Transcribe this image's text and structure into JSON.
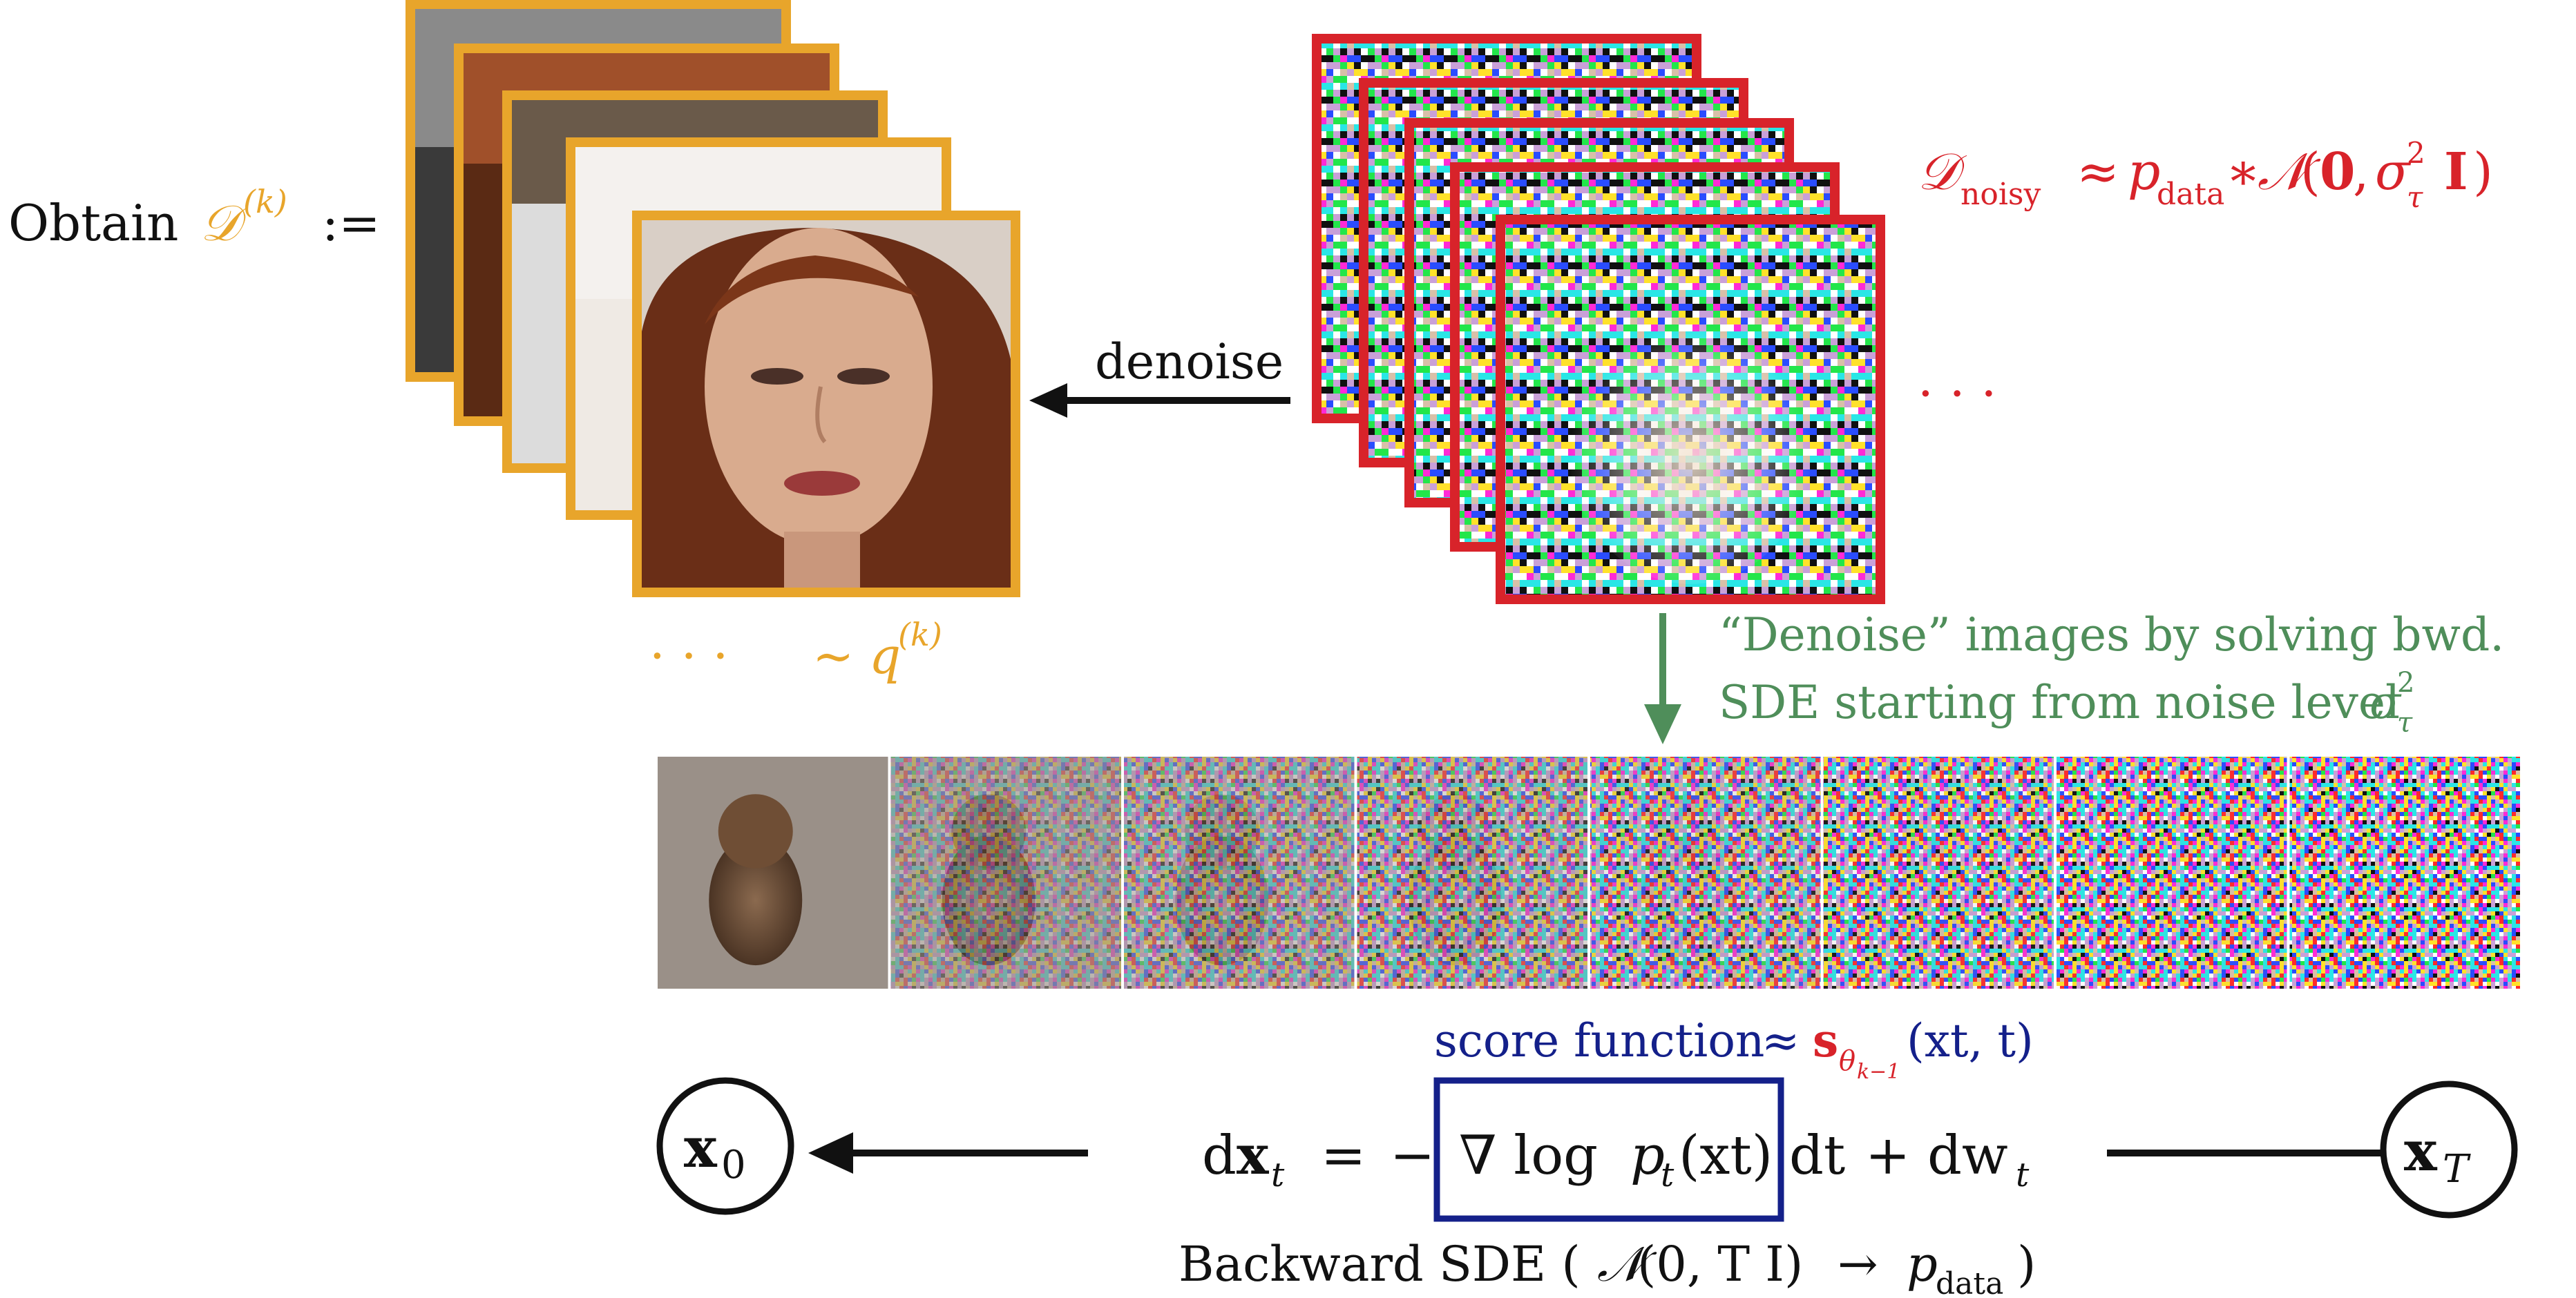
{
  "colors": {
    "orange": "#E8A52B",
    "red": "#D8232A",
    "green": "#4F8E5A",
    "navy": "#14208A",
    "black": "#111111",
    "skin": "#d7a98c",
    "hair": "#6a2e17"
  },
  "top_left": {
    "obtain_word": "Obtain",
    "obtain_symbol": "𝒟",
    "obtain_superscript": "(k)",
    "obtain_assign": ":=",
    "dots": "· · ·",
    "tilde": "∼",
    "q": "q",
    "q_superscript": "(k)"
  },
  "top_right": {
    "noisy_symbol": "𝒟",
    "noisy_subscript": "noisy",
    "approx": "≈",
    "p": "p",
    "p_subscript": "data",
    "convolve": "∗",
    "normal": "𝒩",
    "normal_args_open": "(",
    "zero_vec": "0",
    "comma": ",",
    "sigma": "σ",
    "sigma_sub": "τ",
    "sigma_sup": "2",
    "identity": "I",
    "normal_args_close": ")",
    "dots": "· · ·"
  },
  "arrows": {
    "denoise_label": "denoise"
  },
  "green_note": {
    "line1": "“Denoise” images by solving bwd.",
    "line2_prefix": "SDE starting from noise level",
    "sigma": "σ",
    "sigma_sub": "τ",
    "sigma_sup": "2"
  },
  "image_strip": {
    "frame_count": 8,
    "noise_levels": [
      0.0,
      0.33,
      0.48,
      0.62,
      0.78,
      0.9,
      0.96,
      1.0
    ]
  },
  "score": {
    "label": "score function",
    "approx": "≈",
    "s": "s",
    "theta": "θ",
    "theta_sub": "k−1",
    "args": "(xt, t)",
    "arg_x": "x",
    "arg_x_sub": "t",
    "arg_t": "t"
  },
  "equation": {
    "lhs": "dxt =",
    "d": "d",
    "x": "x",
    "x_sub": "t",
    "equals": "=",
    "minus": "−",
    "nabla_log": "∇ log",
    "p": "p",
    "p_sub": "t",
    "p_arg": "(xt)",
    "dt": "dt",
    "plus": "+",
    "dw": "dw",
    "dw_sub": "t"
  },
  "nodes": {
    "left_x": "x",
    "left_sub": "0",
    "right_x": "x",
    "right_sub": "T"
  },
  "caption": {
    "prefix": "Backward SDE (",
    "normal": "𝒩",
    "args": "(0, T I)",
    "arrow": "→",
    "p": "p",
    "p_sub": "data",
    "suffix": ")"
  }
}
